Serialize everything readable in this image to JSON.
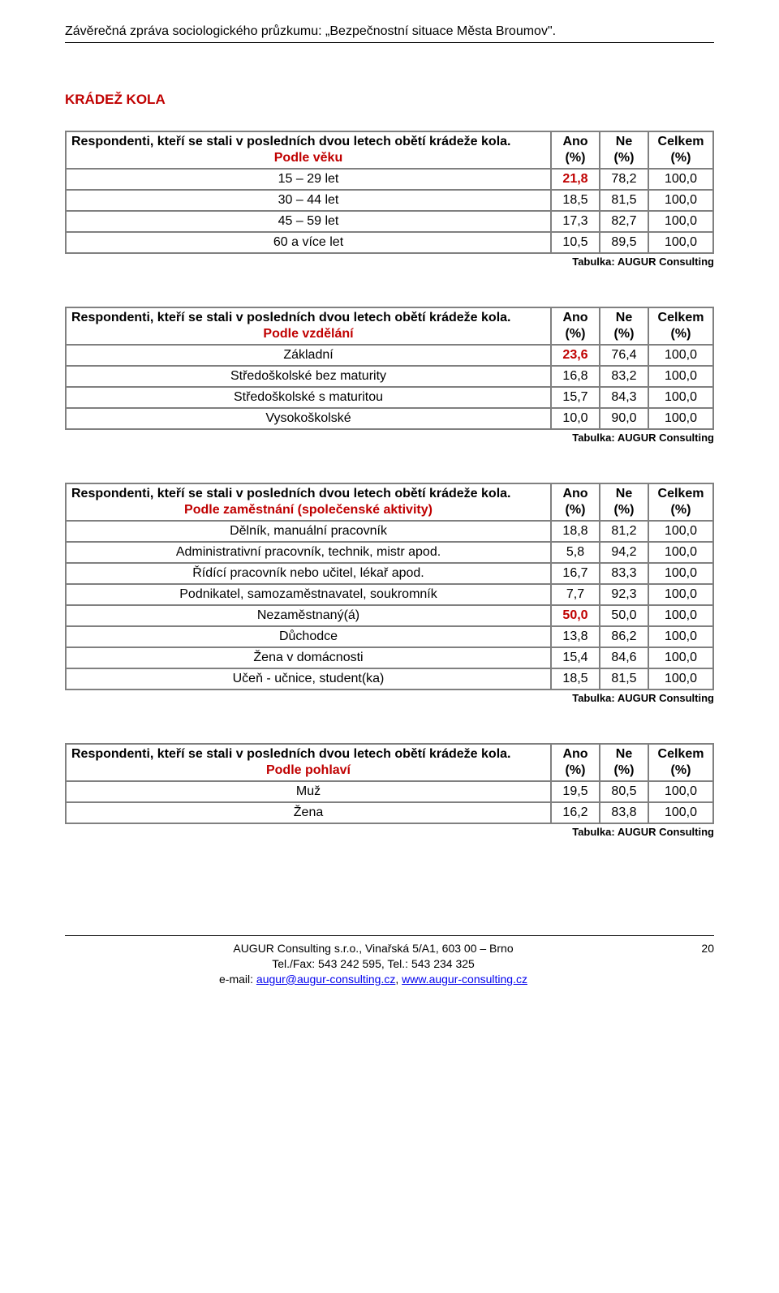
{
  "header": {
    "report_title": "Závěrečná zpráva sociologického průzkumu: „Bezpečnostní situace Města Broumov\"."
  },
  "section_title": "KRÁDEŽ KOLA",
  "colors": {
    "accent": "#c00000"
  },
  "tables": [
    {
      "title_line1": "Respondenti, kteří se stali v posledních dvou letech obětí krádeže kola.",
      "title_line2": "Podle věku",
      "col_labels": [
        "Ano (%)",
        "Ne (%)",
        "Celkem (%)"
      ],
      "rows": [
        {
          "label": "15 – 29 let",
          "ano": "21,8",
          "ne": "78,2",
          "celkem": "100,0",
          "red": true
        },
        {
          "label": "30 – 44 let",
          "ano": "18,5",
          "ne": "81,5",
          "celkem": "100,0",
          "red": false
        },
        {
          "label": "45 – 59 let",
          "ano": "17,3",
          "ne": "82,7",
          "celkem": "100,0",
          "red": false
        },
        {
          "label": "60 a více let",
          "ano": "10,5",
          "ne": "89,5",
          "celkem": "100,0",
          "red": false
        }
      ],
      "caption": "Tabulka: AUGUR Consulting"
    },
    {
      "title_line1": "Respondenti, kteří se stali v posledních dvou letech obětí krádeže kola.",
      "title_line2": "Podle vzdělání",
      "col_labels": [
        "Ano (%)",
        "Ne (%)",
        "Celkem (%)"
      ],
      "rows": [
        {
          "label": "Základní",
          "ano": "23,6",
          "ne": "76,4",
          "celkem": "100,0",
          "red": true
        },
        {
          "label": "Středoškolské bez maturity",
          "ano": "16,8",
          "ne": "83,2",
          "celkem": "100,0",
          "red": false
        },
        {
          "label": "Středoškolské s maturitou",
          "ano": "15,7",
          "ne": "84,3",
          "celkem": "100,0",
          "red": false
        },
        {
          "label": "Vysokoškolské",
          "ano": "10,0",
          "ne": "90,0",
          "celkem": "100,0",
          "red": false
        }
      ],
      "caption": "Tabulka: AUGUR Consulting"
    },
    {
      "title_line1": "Respondenti, kteří se stali v posledních dvou letech obětí krádeže kola.",
      "title_line2": "Podle zaměstnání (společenské aktivity)",
      "col_labels": [
        "Ano (%)",
        "Ne (%)",
        "Celkem (%)"
      ],
      "rows": [
        {
          "label": "Dělník, manuální pracovník",
          "ano": "18,8",
          "ne": "81,2",
          "celkem": "100,0",
          "red": false
        },
        {
          "label": "Administrativní pracovník, technik, mistr apod.",
          "ano": "5,8",
          "ne": "94,2",
          "celkem": "100,0",
          "red": false
        },
        {
          "label": "Řídící pracovník nebo učitel, lékař apod.",
          "ano": "16,7",
          "ne": "83,3",
          "celkem": "100,0",
          "red": false
        },
        {
          "label": "Podnikatel, samozaměstnavatel, soukromník",
          "ano": "7,7",
          "ne": "92,3",
          "celkem": "100,0",
          "red": false
        },
        {
          "label": "Nezaměstnaný(á)",
          "ano": "50,0",
          "ne": "50,0",
          "celkem": "100,0",
          "red": true
        },
        {
          "label": "Důchodce",
          "ano": "13,8",
          "ne": "86,2",
          "celkem": "100,0",
          "red": false
        },
        {
          "label": "Žena v domácnosti",
          "ano": "15,4",
          "ne": "84,6",
          "celkem": "100,0",
          "red": false
        },
        {
          "label": "Učeň - učnice, student(ka)",
          "ano": "18,5",
          "ne": "81,5",
          "celkem": "100,0",
          "red": false
        }
      ],
      "caption": "Tabulka: AUGUR Consulting"
    },
    {
      "title_line1": "Respondenti, kteří se stali v posledních dvou letech obětí krádeže kola.",
      "title_line2": "Podle pohlaví",
      "col_labels": [
        "Ano (%)",
        "Ne (%)",
        "Celkem (%)"
      ],
      "rows": [
        {
          "label": "Muž",
          "ano": "19,5",
          "ne": "80,5",
          "celkem": "100,0",
          "red": false
        },
        {
          "label": "Žena",
          "ano": "16,2",
          "ne": "83,8",
          "celkem": "100,0",
          "red": false
        }
      ],
      "caption": "Tabulka: AUGUR Consulting"
    }
  ],
  "footer": {
    "line1": "AUGUR Consulting s.r.o., Vinařská 5/A1, 603 00 – Brno",
    "line2": "Tel./Fax: 543 242 595, Tel.: 543 234 325",
    "line3_prefix": "e-mail: ",
    "link1": "augur@augur-consulting.cz",
    "line3_mid": ", ",
    "link2": "www.augur-consulting.cz",
    "page_number": "20"
  }
}
